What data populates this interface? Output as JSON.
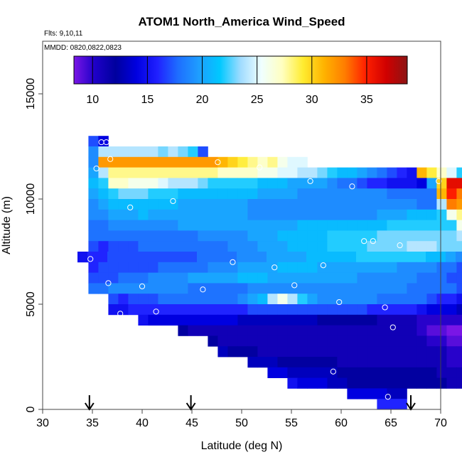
{
  "chart_data": {
    "type": "heatmap",
    "title": "ATOM1 North_America Wind_Speed",
    "subtitle_flights": "Flts: 9,10,11",
    "subtitle_dates": "MMDD: 0820,0822,0823",
    "xlabel": "Latitude (deg N)",
    "ylabel": "Altitude (m)",
    "xlim": [
      30,
      70
    ],
    "ylim": [
      0,
      17500
    ],
    "xticks": [
      30,
      35,
      40,
      45,
      50,
      55,
      60,
      65,
      70
    ],
    "yticks": [
      0,
      5000,
      10000,
      15000
    ],
    "colorbar": {
      "min": 8.3,
      "max": 38.7,
      "ticks": [
        10,
        15,
        20,
        25,
        30,
        35
      ],
      "palette": [
        "#7a16e6",
        "#1e00c8",
        "#00009e",
        "#0000e0",
        "#2020ff",
        "#1e6eff",
        "#1e9eff",
        "#00c8ff",
        "#a0dcff",
        "#f0ffff",
        "#ffffc0",
        "#ffec30",
        "#ffb300",
        "#ff7d00",
        "#ff2000",
        "#d00000",
        "#8c1414"
      ]
    },
    "grid_rows": [
      {
        "alt": 12750,
        "lat0": 35.1,
        "values": [
          17,
          14
        ]
      },
      {
        "alt": 12250,
        "lat0": 35.1,
        "values": [
          19,
          24,
          24,
          24,
          24,
          24,
          24,
          23,
          24,
          23,
          22,
          17
        ]
      },
      {
        "alt": 11750,
        "lat0": 35.1,
        "values": [
          19,
          32,
          32,
          32,
          32,
          32,
          32,
          32,
          32,
          32,
          32,
          32,
          32,
          31,
          30,
          29,
          28,
          27,
          28,
          26,
          25,
          25
        ]
      },
      {
        "alt": 11250,
        "lat0": 35.1,
        "values": [
          20,
          24,
          28,
          28,
          28,
          28,
          28,
          28,
          28,
          28,
          28,
          28,
          28,
          27,
          27,
          27,
          27,
          26,
          26,
          25,
          25,
          24,
          24,
          23,
          22,
          21,
          21,
          20,
          19,
          18,
          17,
          16,
          15,
          31,
          29,
          27,
          25,
          22
        ]
      },
      {
        "alt": 10750,
        "lat0": 35.1,
        "values": [
          21,
          22,
          27,
          27,
          26,
          26,
          26,
          25,
          24,
          24,
          24,
          23,
          22,
          22,
          22,
          22,
          22,
          21,
          21,
          21,
          20,
          20,
          20,
          20,
          19,
          18,
          18,
          17,
          16,
          16,
          15,
          15,
          15,
          14,
          20,
          30,
          36,
          36,
          33,
          30,
          27,
          22,
          16,
          14,
          14
        ]
      },
      {
        "alt": 10250,
        "lat0": 35.1,
        "values": [
          20,
          21,
          22,
          23,
          23,
          23,
          22,
          22,
          22,
          21,
          21,
          21,
          21,
          21,
          21,
          21,
          21,
          20,
          20,
          20,
          20,
          19,
          19,
          19,
          19,
          19,
          19,
          19,
          19,
          19,
          18,
          18,
          18,
          18,
          18,
          31,
          35,
          33,
          31,
          28,
          21,
          17,
          15,
          13
        ]
      },
      {
        "alt": 9750,
        "lat0": 35.1,
        "values": [
          19,
          20,
          21,
          21,
          21,
          21,
          21,
          21,
          21,
          20,
          20,
          20,
          20,
          20,
          20,
          20,
          19,
          19,
          19,
          19,
          19,
          19,
          19,
          19,
          19,
          19,
          19,
          19,
          19,
          19,
          19,
          19,
          19,
          18,
          18,
          24,
          33,
          32,
          30,
          27,
          20,
          17,
          14
        ]
      },
      {
        "alt": 9250,
        "lat0": 35.1,
        "values": [
          19,
          19,
          20,
          20,
          20,
          21,
          20,
          20,
          20,
          20,
          20,
          20,
          20,
          20,
          20,
          20,
          19,
          19,
          19,
          19,
          19,
          19,
          19,
          19,
          19,
          19,
          19,
          19,
          19,
          20,
          20,
          20,
          21,
          21,
          21,
          22,
          26,
          28,
          30,
          28,
          19,
          16,
          12
        ]
      },
      {
        "alt": 8750,
        "lat0": 35.1,
        "values": [
          18,
          18,
          19,
          19,
          19,
          19,
          19,
          19,
          19,
          20,
          20,
          20,
          20,
          20,
          20,
          20,
          20,
          20,
          20,
          20,
          20,
          21,
          21,
          21,
          21,
          21,
          21,
          21,
          21,
          21,
          22,
          22,
          22,
          22,
          22,
          22,
          22,
          26,
          29,
          28,
          19,
          15,
          13
        ]
      },
      {
        "alt": 8250,
        "lat0": 35.1,
        "values": [
          18,
          18,
          18,
          18,
          18,
          18,
          18,
          18,
          18,
          18,
          18,
          19,
          19,
          19,
          19,
          19,
          20,
          20,
          20,
          21,
          21,
          21,
          21,
          21,
          22,
          22,
          22,
          22,
          22,
          23,
          23,
          23,
          23,
          23,
          23,
          23,
          23,
          24,
          24,
          22,
          19,
          15
        ]
      },
      {
        "alt": 7750,
        "lat0": 35.1,
        "values": [
          17,
          16,
          17,
          17,
          17,
          18,
          18,
          18,
          18,
          18,
          18,
          18,
          18,
          18,
          19,
          19,
          19,
          20,
          20,
          20,
          21,
          21,
          21,
          21,
          22,
          22,
          22,
          22,
          23,
          23,
          23,
          23,
          24,
          24,
          24,
          23,
          23,
          23,
          22,
          20,
          18,
          16
        ]
      },
      {
        "alt": 7250,
        "lat0": 34.0,
        "values": [
          15,
          16,
          16,
          17,
          17,
          17,
          17,
          17,
          17,
          17,
          17,
          17,
          18,
          18,
          18,
          18,
          19,
          19,
          19,
          20,
          20,
          20,
          20,
          21,
          21,
          21,
          21,
          21,
          22,
          22,
          22,
          22,
          22,
          22,
          22,
          21,
          21,
          20,
          19,
          18,
          17,
          16,
          9
        ]
      },
      {
        "alt": 6750,
        "lat0": 35.1,
        "values": [
          16,
          17,
          17,
          17,
          17,
          17,
          17,
          18,
          18,
          18,
          18,
          18,
          19,
          19,
          19,
          20,
          20,
          20,
          20,
          21,
          21,
          21,
          21,
          20,
          20,
          20,
          20,
          20,
          20,
          20,
          20,
          19,
          19,
          19,
          19,
          18,
          18,
          17,
          17,
          16,
          14
        ]
      },
      {
        "alt": 6250,
        "lat0": 35.1,
        "values": [
          17,
          17,
          17,
          18,
          18,
          18,
          19,
          19,
          19,
          19,
          20,
          20,
          20,
          20,
          20,
          21,
          21,
          21,
          20,
          20,
          20,
          20,
          20,
          20,
          20,
          20,
          20,
          19,
          19,
          19,
          19,
          19,
          19,
          18,
          18,
          18,
          17,
          17,
          17,
          14,
          13
        ]
      },
      {
        "alt": 5750,
        "lat0": 35.1,
        "values": [
          18,
          18,
          19,
          19,
          19,
          19,
          19,
          19,
          19,
          19,
          18,
          18,
          18,
          18,
          18,
          18,
          19,
          19,
          19,
          19,
          19,
          19,
          19,
          19,
          19,
          19,
          19,
          19,
          19,
          19,
          19,
          19,
          18,
          18,
          18,
          18,
          18,
          17,
          17,
          14,
          13
        ]
      },
      {
        "alt": 5250,
        "lat0": 37.1,
        "values": [
          17,
          16,
          17,
          17,
          17,
          18,
          18,
          18,
          18,
          18,
          18,
          18,
          18,
          19,
          20,
          21,
          24,
          26,
          24,
          22,
          20,
          19,
          19,
          19,
          19,
          19,
          19,
          18,
          18,
          18,
          18,
          18,
          17,
          16,
          16,
          15,
          13,
          12
        ]
      },
      {
        "alt": 4750,
        "lat0": 37.1,
        "values": [
          15,
          15,
          16,
          16,
          16,
          16,
          16,
          16,
          16,
          16,
          16,
          16,
          16,
          16,
          17,
          17,
          17,
          17,
          17,
          17,
          17,
          17,
          17,
          17,
          17,
          17,
          16,
          16,
          16,
          16,
          16,
          15,
          14,
          14,
          14,
          13,
          12
        ]
      },
      {
        "alt": 4250,
        "lat0": 40.1,
        "values": [
          15,
          14,
          14,
          14,
          14,
          14,
          14,
          14,
          14,
          14,
          13,
          13,
          13,
          13,
          13,
          13,
          13,
          13,
          12,
          12,
          12,
          12,
          12,
          12,
          11,
          11,
          11,
          11,
          10,
          10,
          10,
          10,
          10
        ]
      },
      {
        "alt": 3750,
        "lat0": 44.1,
        "values": [
          12,
          11,
          11,
          11,
          11,
          11,
          11,
          11,
          11,
          11,
          11,
          11,
          11,
          11,
          11,
          11,
          11,
          11,
          11,
          11,
          11,
          11,
          11,
          11,
          10,
          9,
          9,
          8,
          8
        ]
      },
      {
        "alt": 3250,
        "lat0": 47.1,
        "values": [
          12,
          11,
          11,
          11,
          11,
          11,
          11,
          11,
          11,
          11,
          11,
          11,
          11,
          11,
          11,
          11,
          11,
          11,
          11,
          11,
          11,
          11,
          10,
          10,
          9,
          9
        ]
      },
      {
        "alt": 2750,
        "lat0": 48.1,
        "values": [
          13,
          12,
          12,
          12,
          11,
          11,
          11,
          11,
          11,
          11,
          11,
          11,
          11,
          11,
          11,
          11,
          11,
          11,
          11,
          11,
          11,
          11,
          11,
          10,
          10
        ]
      },
      {
        "alt": 2250,
        "lat0": 51.1,
        "values": [
          13,
          13,
          13,
          12,
          12,
          12,
          12,
          12,
          12,
          11,
          11,
          11,
          11,
          11,
          11,
          11,
          11,
          11,
          11,
          11,
          10,
          10
        ]
      },
      {
        "alt": 1750,
        "lat0": 53.1,
        "values": [
          14,
          14,
          13,
          13,
          13,
          13,
          13,
          12,
          12,
          12,
          12,
          12,
          12,
          12,
          12,
          12,
          12,
          11,
          11,
          11
        ]
      },
      {
        "alt": 1250,
        "lat0": 55.1,
        "values": [
          15,
          14,
          14,
          14,
          13,
          13,
          12,
          12,
          12,
          12,
          12,
          12,
          12,
          12,
          12,
          12,
          11,
          11
        ]
      },
      {
        "alt": 750,
        "lat0": 61.1,
        "values": [
          14,
          14,
          14,
          14,
          13,
          13
        ]
      },
      {
        "alt": 250,
        "lat0": 64.1,
        "values": [
          16,
          16,
          16
        ]
      }
    ],
    "circles": [
      [
        35.9,
        12700
      ],
      [
        36.4,
        12700
      ],
      [
        36.8,
        11900
      ],
      [
        35.4,
        11450
      ],
      [
        47.6,
        11750
      ],
      [
        51.8,
        11500
      ],
      [
        56.9,
        10850
      ],
      [
        61.1,
        10600
      ],
      [
        69.8,
        10850
      ],
      [
        38.8,
        9600
      ],
      [
        43.1,
        9900
      ],
      [
        62.3,
        8000
      ],
      [
        63.2,
        8000
      ],
      [
        65.9,
        7800
      ],
      [
        34.8,
        7150
      ],
      [
        49.1,
        7000
      ],
      [
        53.3,
        6750
      ],
      [
        58.2,
        6850
      ],
      [
        36.6,
        6000
      ],
      [
        40.0,
        5850
      ],
      [
        46.1,
        5700
      ],
      [
        55.3,
        5900
      ],
      [
        59.8,
        5100
      ],
      [
        64.4,
        4850
      ],
      [
        37.8,
        4550
      ],
      [
        41.4,
        4650
      ],
      [
        65.2,
        3900
      ],
      [
        59.2,
        1800
      ],
      [
        64.7,
        600
      ]
    ],
    "flight_arrows": [
      34.7,
      44.9,
      67.0
    ]
  }
}
